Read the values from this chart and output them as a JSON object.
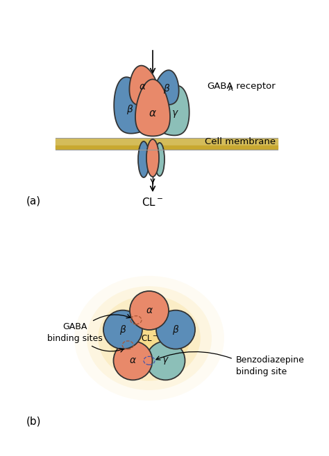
{
  "bg_color": "#ffffff",
  "salmon_color": "#E8896A",
  "blue_color": "#5B8DB8",
  "teal_color": "#8CBFB8",
  "outline_color": "#333333",
  "glow_color": "#F5C842",
  "panel_a_label": "(a)",
  "panel_b_label": "(b)",
  "cell_membrane_label": "Cell membrane",
  "gaba_receptor_label1": "GABA",
  "gaba_receptor_label2": "A receptor",
  "cl_minus_label": "CL",
  "gaba_binding_label": "GABA\nbinding sites",
  "benzo_binding_label": "Benzodiazepine\nbinding site",
  "cl_center_label": "CL",
  "mem_color1": "#D4BC5A",
  "mem_color2": "#C8A830",
  "figw": 4.74,
  "figh": 6.58,
  "dpi": 100
}
